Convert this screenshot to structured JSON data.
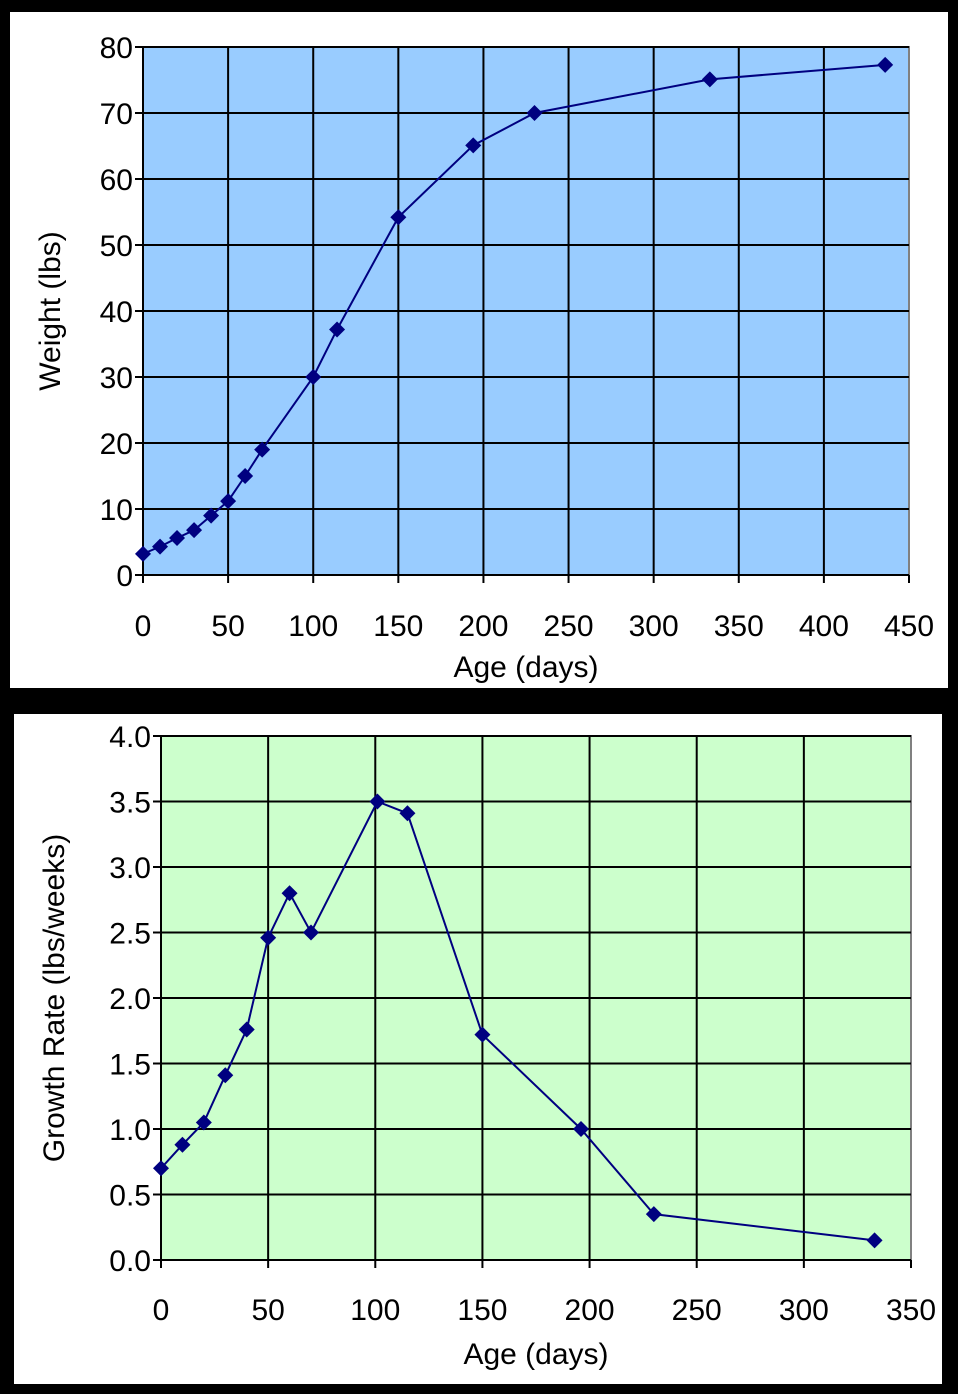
{
  "charts": [
    {
      "type": "line",
      "xlabel": "Age (days)",
      "ylabel": "Weight (lbs)",
      "xlim": [
        0,
        450
      ],
      "ylim": [
        0,
        80
      ],
      "xticks": [
        0,
        50,
        100,
        150,
        200,
        250,
        300,
        350,
        400,
        450
      ],
      "yticks": [
        0,
        10,
        20,
        30,
        40,
        50,
        60,
        70,
        80
      ],
      "ytick_decimals": 0,
      "grid": true,
      "background": "#99ccff",
      "line_color": "#000080",
      "series": [
        {
          "x": [
            0,
            10,
            20,
            30,
            40,
            50,
            60,
            70,
            100,
            114,
            150,
            194,
            230,
            333,
            436
          ],
          "y": [
            3.2,
            4.3,
            5.6,
            6.8,
            9.0,
            11.2,
            15.0,
            19.0,
            30.0,
            37.2,
            54.2,
            65.1,
            70.0,
            75.1,
            77.3
          ]
        }
      ]
    },
    {
      "type": "line",
      "xlabel": "Age (days)",
      "ylabel": "Growth Rate (lbs/weeks)",
      "xlim": [
        0,
        350
      ],
      "ylim": [
        0,
        4
      ],
      "xticks": [
        0,
        50,
        100,
        150,
        200,
        250,
        300,
        350
      ],
      "yticks": [
        0,
        0.5,
        1,
        1.5,
        2,
        2.5,
        3,
        3.5,
        4
      ],
      "ytick_decimals": 1,
      "grid": true,
      "background": "#ccffcc",
      "line_color": "#000080",
      "series": [
        {
          "x": [
            0,
            10,
            20,
            30,
            40,
            50,
            60,
            70,
            101,
            115,
            150,
            196,
            230,
            333
          ],
          "y": [
            0.7,
            0.88,
            1.05,
            1.41,
            1.76,
            2.46,
            2.8,
            2.5,
            3.5,
            3.41,
            1.72,
            1.0,
            0.35,
            0.15
          ]
        }
      ]
    }
  ]
}
